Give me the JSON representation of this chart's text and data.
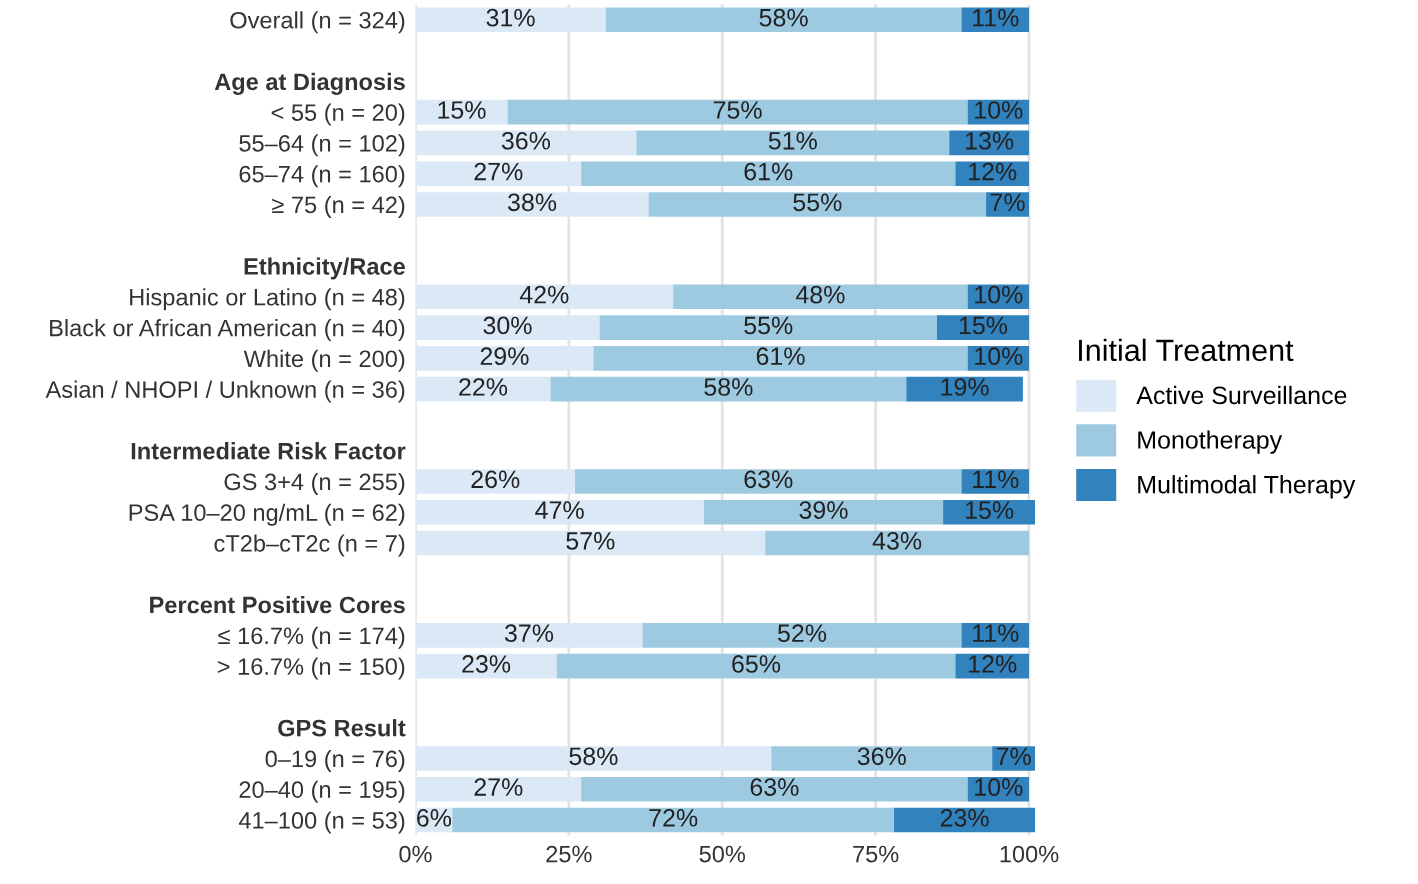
{
  "chart_data": {
    "type": "bar",
    "orientation": "horizontal",
    "stacked": true,
    "categories": [
      "Overall (n = 324)",
      null,
      "Age at Diagnosis",
      "< 55 (n = 20)",
      "55–64 (n = 102)",
      "65–74 (n = 160)",
      "≥ 75 (n = 42)",
      null,
      "Ethnicity/Race",
      "Hispanic or Latino (n = 48)",
      "Black or African American (n = 40)",
      "White (n = 200)",
      "Asian / NHOPI / Unknown (n = 36)",
      null,
      "Intermediate Risk Factor",
      "GS 3+4 (n = 255)",
      "PSA 10–20 ng/mL (n = 62)",
      "cT2b–cT2c (n = 7)",
      null,
      "Percent Positive Cores",
      "≤ 16.7% (n = 174)",
      "> 16.7% (n = 150)",
      null,
      "GPS Result",
      "0–19 (n = 76)",
      "20–40 (n = 195)",
      "41–100 (n = 53)"
    ],
    "series": [
      {
        "name": "Active Surveillance",
        "color": "#dbe9f6",
        "values": [
          31,
          null,
          null,
          15,
          36,
          27,
          38,
          null,
          null,
          42,
          30,
          29,
          22,
          null,
          null,
          26,
          47,
          57,
          null,
          null,
          37,
          23,
          null,
          null,
          58,
          27,
          6
        ],
        "value_labels": [
          "31%",
          null,
          null,
          "15%",
          "36%",
          "27%",
          "38%",
          null,
          null,
          "42%",
          "30%",
          "29%",
          "22%",
          null,
          null,
          "26%",
          "47%",
          "57%",
          null,
          null,
          "37%",
          "23%",
          null,
          null,
          "58%",
          "27%",
          "6%"
        ]
      },
      {
        "name": "Monotherapy",
        "color": "#9ecae1",
        "values": [
          58,
          null,
          null,
          75,
          51,
          61,
          55,
          null,
          null,
          48,
          55,
          61,
          58,
          null,
          null,
          63,
          39,
          43,
          null,
          null,
          52,
          65,
          null,
          null,
          36,
          63,
          72
        ],
        "value_labels": [
          "58%",
          null,
          null,
          "75%",
          "51%",
          "61%",
          "55%",
          null,
          null,
          "48%",
          "55%",
          "61%",
          "58%",
          null,
          null,
          "63%",
          "39%",
          "43%",
          null,
          null,
          "52%",
          "65%",
          null,
          null,
          "36%",
          "63%",
          "72%"
        ]
      },
      {
        "name": "Multimodal Therapy",
        "color": "#3182bd",
        "values": [
          11,
          null,
          null,
          10,
          13,
          12,
          7,
          null,
          null,
          10,
          15,
          10,
          19,
          null,
          null,
          11,
          15,
          null,
          null,
          null,
          11,
          12,
          null,
          null,
          7,
          10,
          23
        ],
        "value_labels": [
          "11%",
          null,
          null,
          "10%",
          "13%",
          "12%",
          "7%",
          null,
          null,
          "10%",
          "15%",
          "10%",
          "19%",
          null,
          null,
          "11%",
          "15%",
          null,
          null,
          null,
          "11%",
          "12%",
          null,
          null,
          "7%",
          "10%",
          "23%"
        ]
      }
    ],
    "xlim": [
      0,
      101
    ],
    "xticks": [
      {
        "value": 0,
        "label": "0%"
      },
      {
        "value": 25,
        "label": "25%"
      },
      {
        "value": 50,
        "label": "50%"
      },
      {
        "value": 75,
        "label": "75%"
      },
      {
        "value": 100,
        "label": "100%"
      }
    ],
    "grid": "x",
    "legend": "right",
    "legend_title": "Initial Treatment"
  }
}
